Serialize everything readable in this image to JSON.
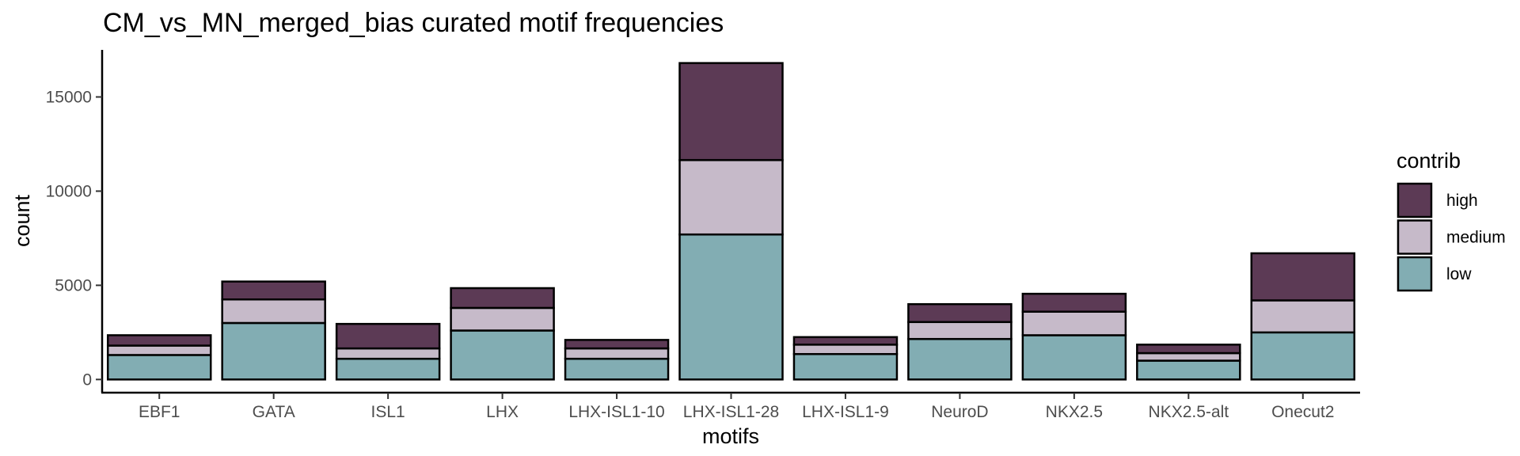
{
  "chart_data": {
    "type": "bar",
    "stacked": true,
    "title": "CM_vs_MN_merged_bias curated motif frequencies",
    "xlabel": "motifs",
    "ylabel": "count",
    "ylim": [
      -700,
      17500
    ],
    "yticks": [
      0,
      5000,
      10000,
      15000
    ],
    "grid": false,
    "legend_placement": "right",
    "legend_title": "contrib",
    "categories": [
      "EBF1",
      "GATA",
      "ISL1",
      "LHX",
      "LHX-ISL1-10",
      "LHX-ISL1-28",
      "LHX-ISL1-9",
      "NeuroD",
      "NKX2.5",
      "NKX2.5-alt",
      "Onecut2"
    ],
    "series": [
      {
        "name": "low",
        "color": "#82adb3",
        "values": [
          1300,
          3000,
          1100,
          2600,
          1100,
          7700,
          1350,
          2150,
          2350,
          1000,
          2500
        ]
      },
      {
        "name": "medium",
        "color": "#c6bac9",
        "values": [
          500,
          1250,
          550,
          1200,
          550,
          3950,
          500,
          900,
          1250,
          400,
          1700
        ]
      },
      {
        "name": "high",
        "color": "#5c3a55",
        "values": [
          550,
          950,
          1300,
          1050,
          450,
          5150,
          400,
          950,
          950,
          450,
          2500
        ]
      }
    ]
  }
}
